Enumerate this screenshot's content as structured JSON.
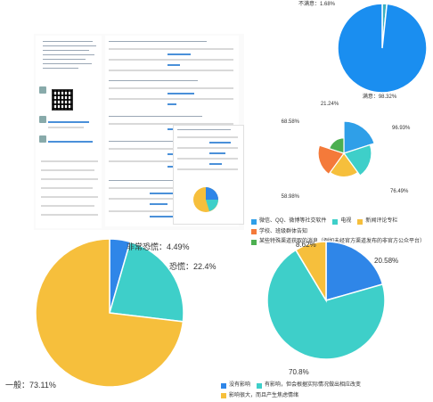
{
  "chart_data": [
    {
      "id": "chart-a",
      "type": "pie",
      "slices": [
        {
          "label": "不满意",
          "value": 1.68,
          "color": "#3ab0c4"
        },
        {
          "label": "满意",
          "value": 98.32,
          "color": "#1a8ef0"
        }
      ],
      "data_labels": [
        "不满意：1.68%",
        "满意：98.32%"
      ]
    },
    {
      "id": "chart-b",
      "type": "pie",
      "slices": [
        {
          "label": "微信、QQ、微博等社交软件",
          "value": 96.93,
          "color": "#2f9fe8"
        },
        {
          "label": "电视",
          "value": 76.49,
          "color": "#3ecfc9"
        },
        {
          "label": "新闻评论专栏",
          "value": 58.98,
          "color": "#f6bf3c"
        },
        {
          "label": "学校、班级群体告知",
          "value": 68.58,
          "color": "#f47a3a"
        },
        {
          "label": "某些特殊渠道获取的消息（例如未经官方渠道发布的非官方公众平台）",
          "value": 21.24,
          "color": "#4caf50"
        }
      ],
      "data_labels": [
        "96.93%",
        "76.49%",
        "58.98%",
        "68.58%",
        "21.24%"
      ]
    },
    {
      "id": "chart-c",
      "type": "pie",
      "slices": [
        {
          "label": "非常恐慌",
          "value": 4.49,
          "color": "#2f86e8"
        },
        {
          "label": "恐慌",
          "value": 22.4,
          "color": "#3ecfc9"
        },
        {
          "label": "一般",
          "value": 73.11,
          "color": "#f6bf3c"
        }
      ],
      "data_labels": [
        "非常恐慌：4.49%",
        "恐慌：22.4%",
        "一般：73.11%"
      ]
    },
    {
      "id": "chart-d",
      "type": "pie",
      "slices": [
        {
          "label": "没有影响",
          "value": 20.58,
          "color": "#2f86e8"
        },
        {
          "label": "有影响，但会根据实际情况做出相应改变",
          "value": 70.8,
          "color": "#3ecfc9"
        },
        {
          "label": "影响很大，而且产生焦虑情绪",
          "value": 8.62,
          "color": "#f6bf3c"
        }
      ],
      "data_labels": [
        "20.58%",
        "70.8%",
        "8.62%"
      ]
    }
  ]
}
